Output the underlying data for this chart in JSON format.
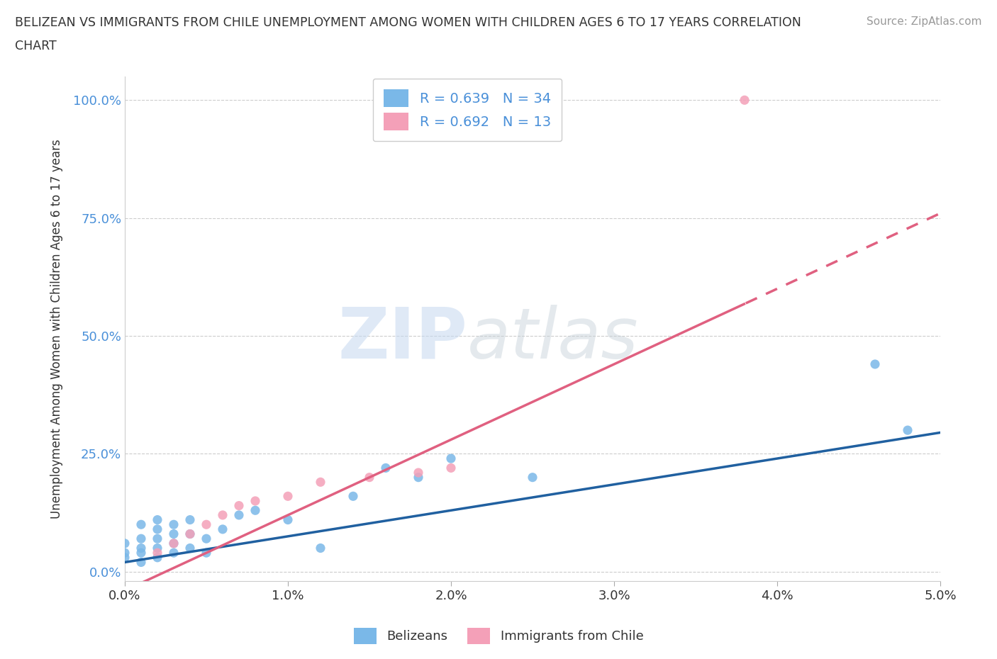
{
  "title_line1": "BELIZEAN VS IMMIGRANTS FROM CHILE UNEMPLOYMENT AMONG WOMEN WITH CHILDREN AGES 6 TO 17 YEARS CORRELATION",
  "title_line2": "CHART",
  "source_text": "Source: ZipAtlas.com",
  "ylabel": "Unemployment Among Women with Children Ages 6 to 17 years",
  "legend_bottom_label1": "Belizeans",
  "legend_bottom_label2": "Immigrants from Chile",
  "xlim": [
    0.0,
    0.05
  ],
  "ylim": [
    -0.02,
    1.05
  ],
  "xtick_labels": [
    "0.0%",
    "1.0%",
    "2.0%",
    "3.0%",
    "4.0%",
    "5.0%"
  ],
  "xtick_vals": [
    0.0,
    0.01,
    0.02,
    0.03,
    0.04,
    0.05
  ],
  "ytick_labels": [
    "0.0%",
    "25.0%",
    "50.0%",
    "75.0%",
    "100.0%"
  ],
  "ytick_vals": [
    0.0,
    0.25,
    0.5,
    0.75,
    1.0
  ],
  "R_belizean": 0.639,
  "N_belizean": 34,
  "R_chile": 0.692,
  "N_chile": 13,
  "color_belizean": "#7ab8e8",
  "color_chile": "#f4a0b8",
  "line_color_belizean": "#2060a0",
  "line_color_chile": "#e06080",
  "watermark_zip": "ZIP",
  "watermark_atlas": "atlas",
  "bg_color": "#ffffff",
  "belizean_x": [
    0.0,
    0.0,
    0.0,
    0.001,
    0.001,
    0.001,
    0.001,
    0.001,
    0.002,
    0.002,
    0.002,
    0.002,
    0.002,
    0.003,
    0.003,
    0.003,
    0.003,
    0.004,
    0.004,
    0.004,
    0.005,
    0.005,
    0.006,
    0.007,
    0.008,
    0.01,
    0.012,
    0.014,
    0.016,
    0.018,
    0.02,
    0.025,
    0.046,
    0.048
  ],
  "belizean_y": [
    0.03,
    0.04,
    0.06,
    0.02,
    0.04,
    0.05,
    0.07,
    0.1,
    0.03,
    0.05,
    0.07,
    0.09,
    0.11,
    0.04,
    0.06,
    0.08,
    0.1,
    0.05,
    0.08,
    0.11,
    0.04,
    0.07,
    0.09,
    0.12,
    0.13,
    0.11,
    0.05,
    0.16,
    0.22,
    0.2,
    0.24,
    0.2,
    0.44,
    0.3
  ],
  "chile_x": [
    0.002,
    0.003,
    0.004,
    0.005,
    0.006,
    0.007,
    0.008,
    0.01,
    0.012,
    0.015,
    0.018,
    0.02,
    0.038
  ],
  "chile_y": [
    0.04,
    0.06,
    0.08,
    0.1,
    0.12,
    0.14,
    0.15,
    0.16,
    0.19,
    0.2,
    0.21,
    0.22,
    1.0
  ],
  "chile_line_slope": 16.0,
  "chile_line_intercept": -0.04,
  "belizean_line_slope": 5.5,
  "belizean_line_intercept": 0.02
}
